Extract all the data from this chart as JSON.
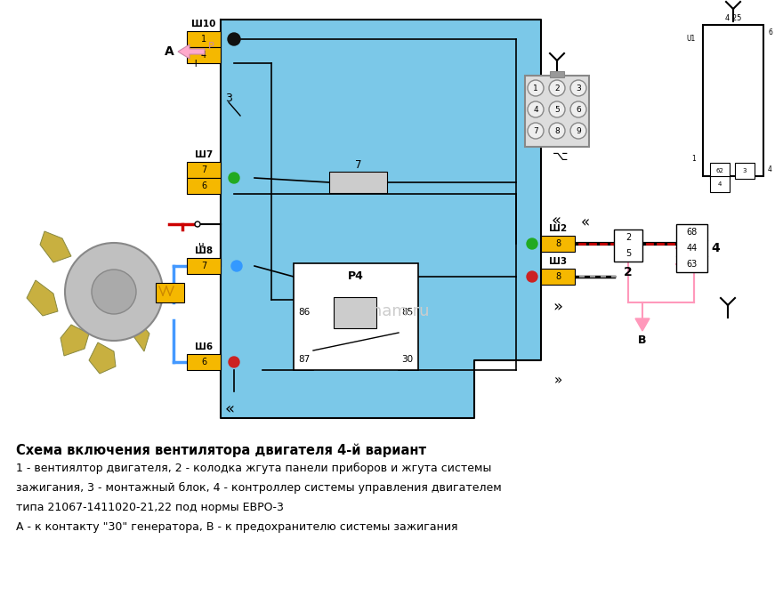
{
  "bg_color": "#ffffff",
  "diagram_bg": "#7BC8E8",
  "title_bold": "Схема включения вентилятора двигателя 4-й вариант",
  "desc_lines": [
    "1 - вентиялтор двигателя, 2 - колодка жгута панели приборов и жгута системы",
    "зажигания, 3 - монтажный блок, 4 - контроллер системы управления двигателем",
    "типа 21067-1411020-21,22 под нормы ЕВРО-3",
    "А - к контакту \"30\" генератора, В - к предохранителю системы зажигания"
  ]
}
